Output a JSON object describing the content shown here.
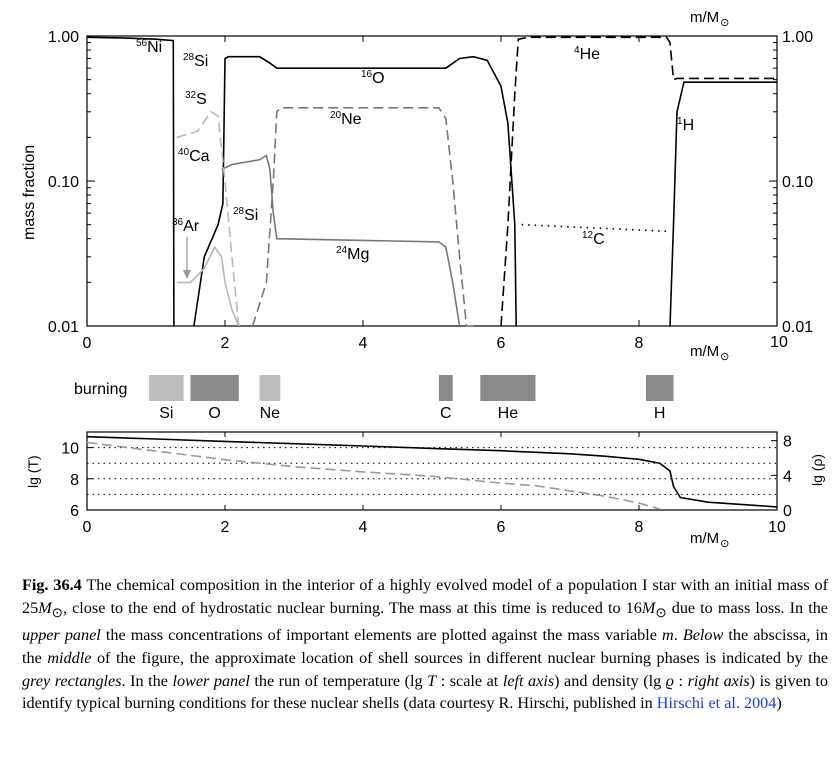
{
  "figure": {
    "top_axis_unit": "m/M",
    "left_axis_label": "mass fraction",
    "x_axis_unit": "m/M",
    "burning_label": "burning",
    "lower_left_label": "lg (T)",
    "lower_right_label": "lg (ρ)",
    "sun_symbol": "⊙"
  },
  "chart_data": [
    {
      "type": "line",
      "panel": "upper",
      "ylabel": "mass fraction",
      "xlabel": "m/M⊙",
      "xlim": [
        0,
        10
      ],
      "ylim": [
        0.01,
        1.0
      ],
      "yscale": "log",
      "x_ticks": [
        "0",
        "2",
        "4",
        "6",
        "8",
        "10"
      ],
      "y_ticks_left": [
        "0.01",
        "0.10",
        "1.00"
      ],
      "y_ticks_right": [
        "0.01",
        "0.10",
        "1.00"
      ],
      "colors": {
        "black": "#000000",
        "dark_grey": "#777777",
        "light_grey": "#b8b8b8"
      },
      "labels": [
        {
          "sup": "56",
          "el": "Ni"
        },
        {
          "sup": "28",
          "el": "Si"
        },
        {
          "sup": "32",
          "el": "S"
        },
        {
          "sup": "40",
          "el": "Ca"
        },
        {
          "sup": "36",
          "el": "Ar"
        },
        {
          "sup": "28",
          "el": "Si"
        },
        {
          "sup": "16",
          "el": "O"
        },
        {
          "sup": "20",
          "el": "Ne"
        },
        {
          "sup": "24",
          "el": "Mg"
        },
        {
          "sup": "4",
          "el": "He"
        },
        {
          "sup": "12",
          "el": "C"
        },
        {
          "sup": "1",
          "el": "H"
        }
      ],
      "series": [
        {
          "name": "56Ni",
          "color": "#000000",
          "style": "solid",
          "x": [
            0,
            0.5,
            1.0,
            1.25,
            1.26
          ],
          "y": [
            0.98,
            0.97,
            0.95,
            0.93,
            0.01
          ]
        },
        {
          "name": "16O",
          "color": "#000000",
          "style": "solid",
          "x": [
            1.55,
            1.7,
            1.9,
            1.97,
            2.0,
            2.05,
            2.5,
            2.65,
            2.75,
            2.85,
            5.2,
            5.4,
            5.6,
            5.8,
            6.0,
            6.1,
            6.2,
            6.22
          ],
          "y": [
            0.01,
            0.03,
            0.05,
            0.07,
            0.7,
            0.72,
            0.72,
            0.65,
            0.6,
            0.6,
            0.6,
            0.7,
            0.72,
            0.68,
            0.45,
            0.25,
            0.05,
            0.01
          ]
        },
        {
          "name": "4He",
          "color": "#000000",
          "style": "dashed",
          "x": [
            6.0,
            6.1,
            6.2,
            6.25,
            6.4,
            8.4,
            8.45,
            8.5,
            8.55,
            10.0
          ],
          "y": [
            0.01,
            0.05,
            0.4,
            0.95,
            0.98,
            0.98,
            0.9,
            0.5,
            0.51,
            0.51
          ]
        },
        {
          "name": "1H",
          "color": "#000000",
          "style": "solid",
          "x": [
            8.45,
            8.5,
            8.55,
            8.65,
            10.0
          ],
          "y": [
            0.01,
            0.05,
            0.3,
            0.48,
            0.48
          ]
        },
        {
          "name": "12C",
          "color": "#000000",
          "style": "dotted",
          "x": [
            6.3,
            8.4
          ],
          "y": [
            0.05,
            0.045
          ]
        },
        {
          "name": "20Ne",
          "color": "#777777",
          "style": "dashed",
          "x": [
            2.4,
            2.6,
            2.7,
            2.75,
            2.8,
            5.1,
            5.2,
            5.3,
            5.4,
            5.5,
            5.6
          ],
          "y": [
            0.01,
            0.02,
            0.1,
            0.3,
            0.32,
            0.32,
            0.27,
            0.1,
            0.03,
            0.01,
            0.01
          ]
        },
        {
          "name": "24Mg",
          "color": "#777777",
          "style": "solid",
          "x": [
            1.95,
            2.1,
            2.5,
            2.6,
            2.65,
            2.7,
            2.75,
            5.1,
            5.2,
            5.3,
            5.4
          ],
          "y": [
            0.12,
            0.13,
            0.14,
            0.15,
            0.12,
            0.06,
            0.04,
            0.038,
            0.035,
            0.02,
            0.01
          ]
        },
        {
          "name": "28Si",
          "color": "#b8b8b8",
          "style": "solid",
          "x": [
            1.3,
            1.5,
            1.7,
            1.85,
            1.95,
            2.0,
            2.1,
            2.2
          ],
          "y": [
            0.02,
            0.02,
            0.025,
            0.035,
            0.03,
            0.02,
            0.013,
            0.01
          ]
        },
        {
          "name": "32S",
          "color": "#b8b8b8",
          "style": "dashed",
          "x": [
            1.3,
            1.6,
            1.8,
            1.9,
            2.0,
            2.1,
            2.2
          ],
          "y": [
            0.2,
            0.22,
            0.3,
            0.28,
            0.1,
            0.03,
            0.01
          ]
        }
      ]
    },
    {
      "type": "bar",
      "panel": "burning",
      "categories": [
        "Si",
        "O",
        "Ne",
        "C",
        "He",
        "H"
      ],
      "ranges": [
        [
          0.9,
          1.4
        ],
        [
          1.5,
          2.2
        ],
        [
          2.5,
          2.8
        ],
        [
          5.1,
          5.3
        ],
        [
          5.7,
          6.5
        ],
        [
          8.1,
          8.5
        ]
      ],
      "shades": [
        "#bdbdbd",
        "#8a8a8a",
        "#bdbdbd",
        "#8a8a8a",
        "#8a8a8a",
        "#8a8a8a"
      ]
    },
    {
      "type": "line",
      "panel": "lower",
      "xlim": [
        0,
        10
      ],
      "ylim_left": [
        6,
        11
      ],
      "ylim_right": [
        0,
        9
      ],
      "x_ticks": [
        "0",
        "2",
        "4",
        "6",
        "8",
        "10"
      ],
      "y_ticks_left": [
        "6",
        "8",
        "10"
      ],
      "y_ticks_right": [
        "0",
        "4",
        "8"
      ],
      "series": [
        {
          "name": "lg T",
          "axis": "left",
          "color": "#000000",
          "style": "solid",
          "x": [
            0,
            1,
            2,
            3,
            4,
            5,
            6,
            7,
            7.5,
            8.0,
            8.3,
            8.45,
            8.5,
            8.6,
            9,
            10
          ],
          "y": [
            10.7,
            10.55,
            10.4,
            10.25,
            10.1,
            9.95,
            9.8,
            9.6,
            9.45,
            9.25,
            9.0,
            8.5,
            7.5,
            6.8,
            6.5,
            6.2
          ]
        },
        {
          "name": "lg rho",
          "axis": "right",
          "color": "#999999",
          "style": "dashed",
          "x": [
            0,
            1,
            2,
            3,
            4,
            5,
            6,
            6.5,
            7,
            7.5,
            8.0,
            8.3
          ],
          "y": [
            7.8,
            6.8,
            5.8,
            5.0,
            4.4,
            3.9,
            3.1,
            2.8,
            2.2,
            1.6,
            0.8,
            0.1
          ]
        }
      ]
    }
  ],
  "caption": {
    "fig_label": "Fig. 36.4",
    "t1": " The chemical composition in the interior of a highly evolved model of a population I star with an initial mass of 25",
    "m1": "M",
    "t2": ", close to the end of hydrostatic nuclear burning. The mass at this time is reduced to 16",
    "m2": "M",
    "t3": " due to mass loss. In the ",
    "i1": "upper panel",
    "t4": " the mass concentrations of important elements are plotted against the mass variable ",
    "i2": "m",
    "t5": ". ",
    "i3": "Below",
    "t6": " the abscissa, in the ",
    "i4": "middle",
    "t7": " of the figure, the approximate location of shell sources in different nuclear burning phases is indicated by the ",
    "i5": "grey rectangles",
    "t8": ". In the ",
    "i6": "lower panel",
    "t9": " the run of temperature (lg ",
    "i7": "T",
    "t10": " : scale at ",
    "i8": "left axis",
    "t11": ") and density (lg ",
    "i9": "ϱ",
    "t12": " : ",
    "i10": "right axis",
    "t13": ") is given to identify typical burning conditions for these nuclear shells (data courtesy R. Hirschi, published in ",
    "link": "Hirschi et al. 2004",
    "t14": ")"
  }
}
